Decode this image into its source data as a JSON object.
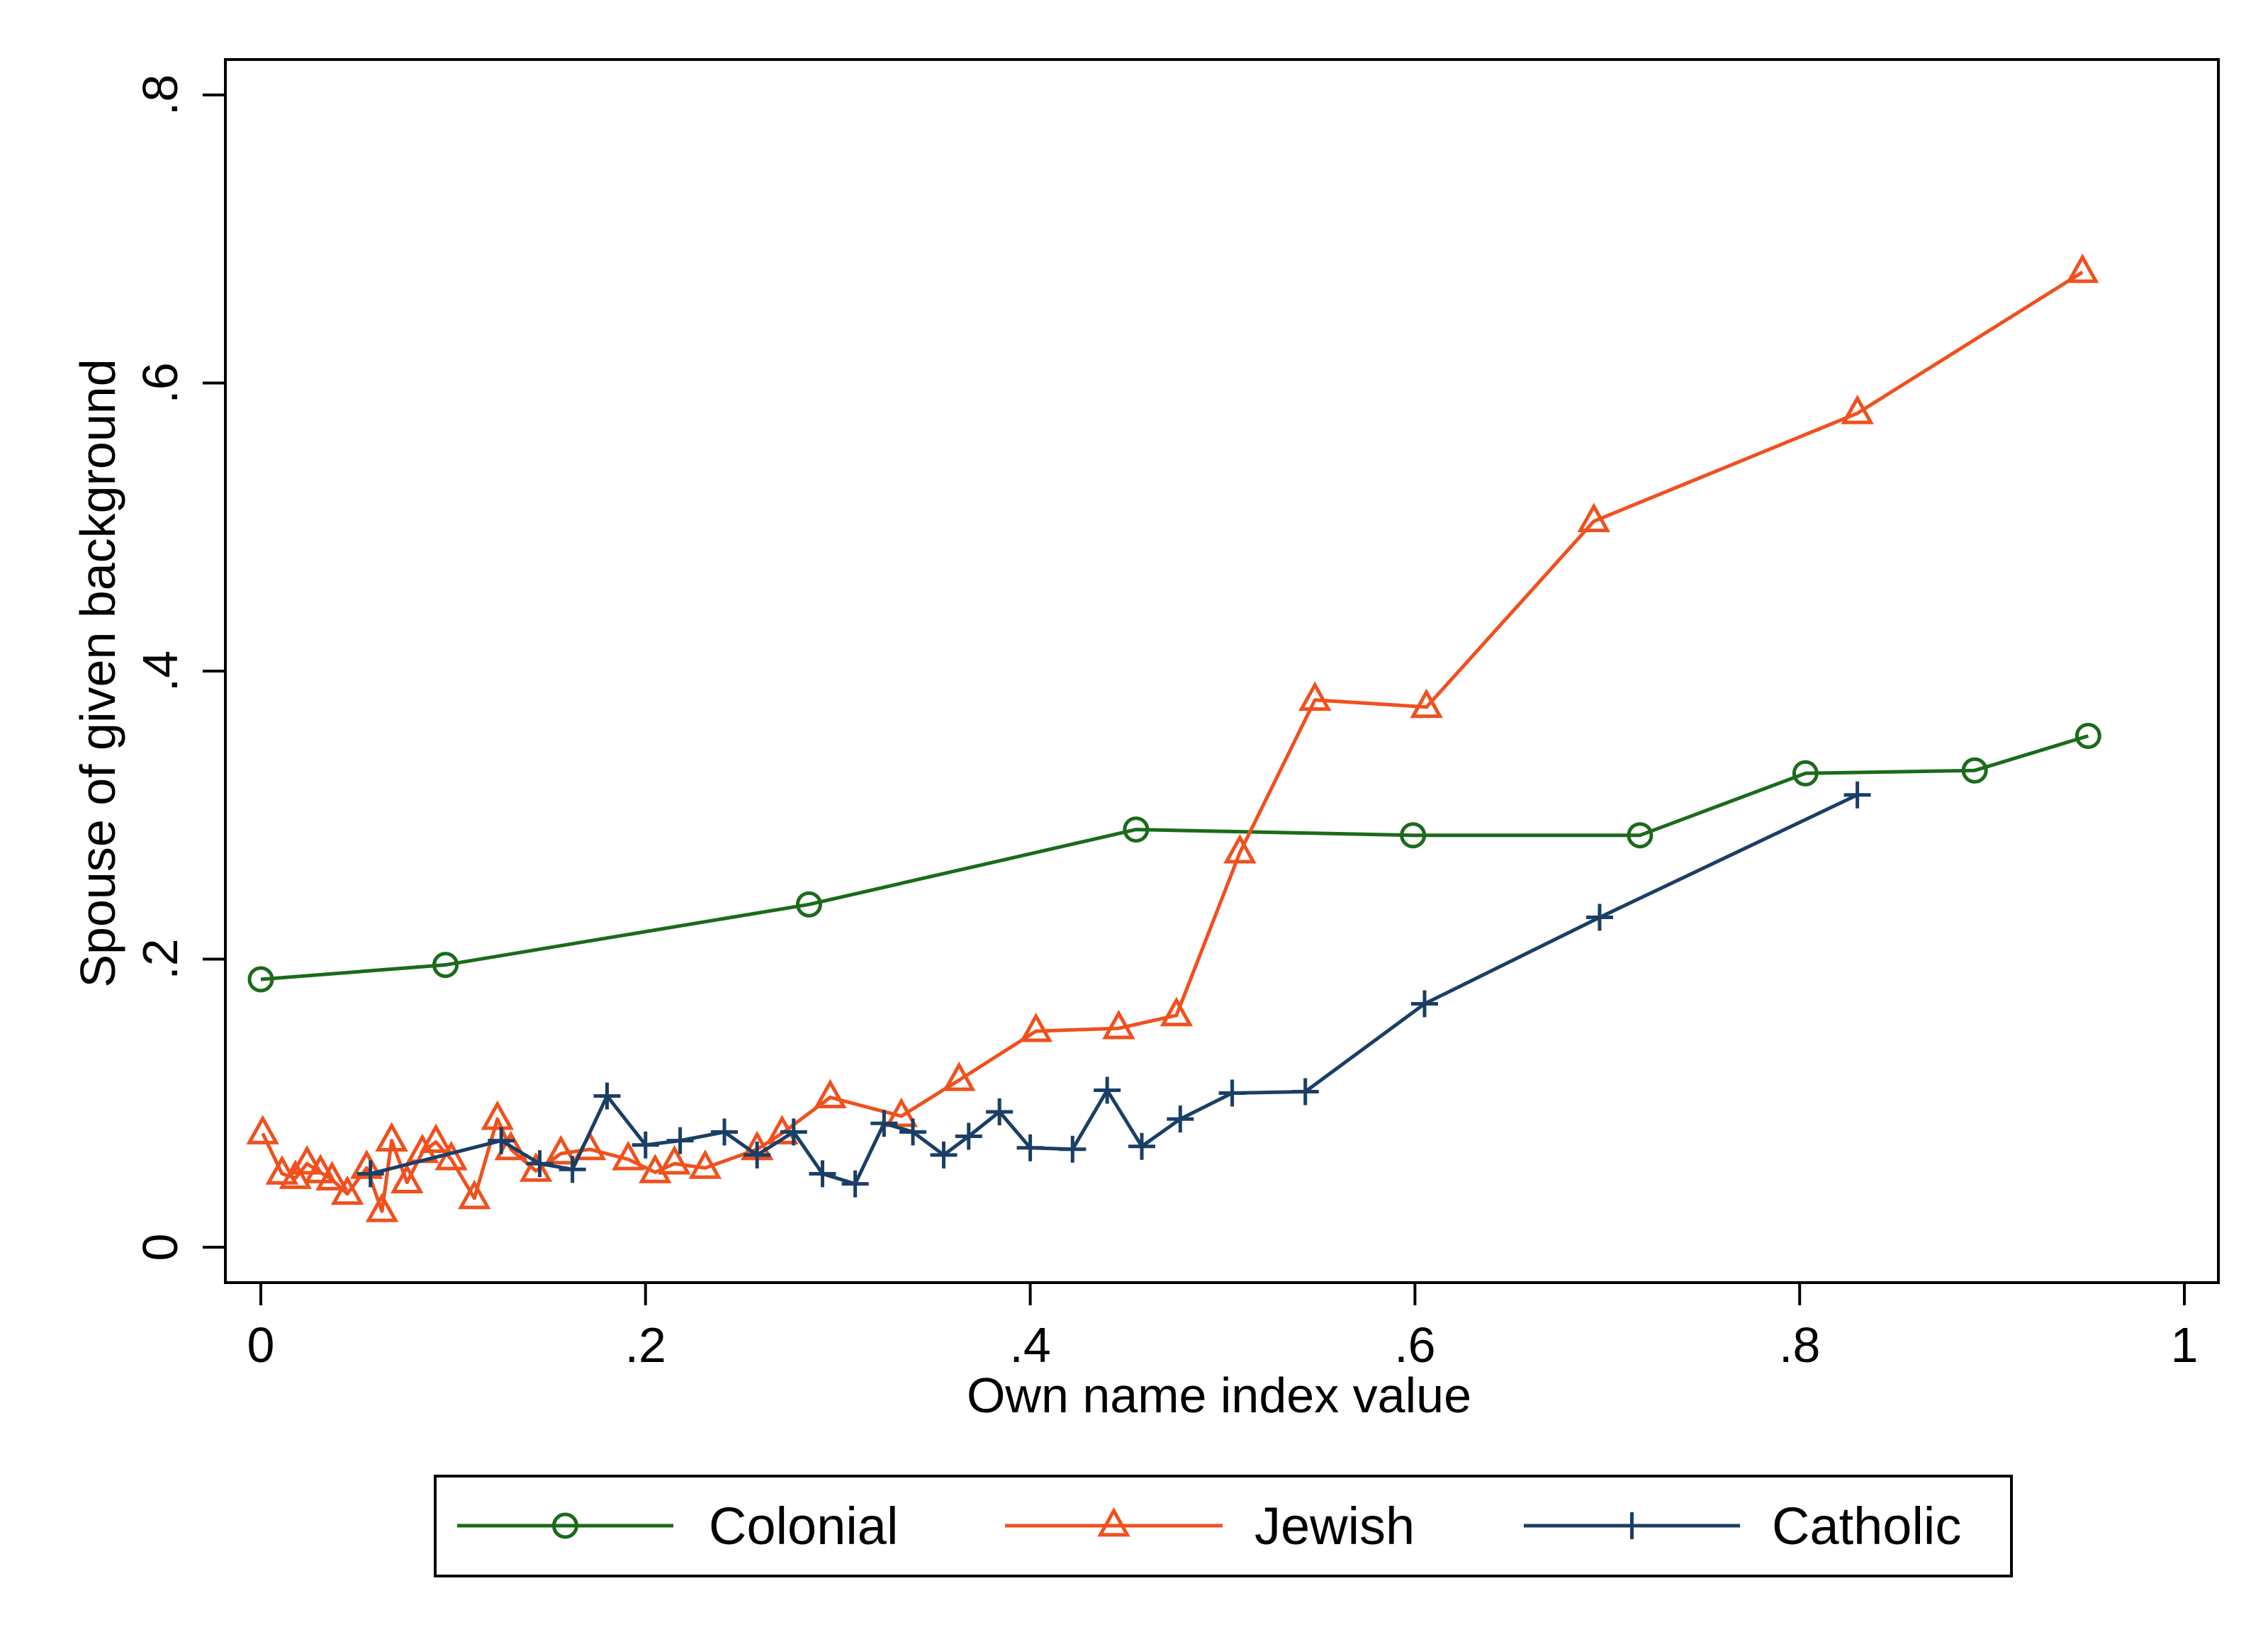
{
  "chart_data": {
    "type": "line",
    "title": "",
    "xlabel": "Own name index value",
    "ylabel": "Spouse of given background",
    "xlim": [
      0,
      1
    ],
    "ylim": [
      0,
      0.8
    ],
    "x_ticks": [
      0,
      0.2,
      0.4,
      0.6,
      0.8,
      1
    ],
    "x_tick_labels": [
      "0",
      ".2",
      ".4",
      ".6",
      ".8",
      "1"
    ],
    "y_ticks": [
      0,
      0.2,
      0.4,
      0.6,
      0.8
    ],
    "y_tick_labels": [
      "0",
      ".2",
      ".4",
      ".6",
      ".8"
    ],
    "grid": false,
    "legend_position": "bottom",
    "series": [
      {
        "name": "Colonial",
        "color": "#1a6b1a",
        "marker": "circle",
        "x": [
          0.0,
          0.096,
          0.285,
          0.455,
          0.599,
          0.717,
          0.803,
          0.891,
          0.95
        ],
        "y": [
          0.186,
          0.196,
          0.238,
          0.29,
          0.286,
          0.286,
          0.329,
          0.331,
          0.355
        ]
      },
      {
        "name": "Jewish",
        "color": "#f0501e",
        "marker": "triangle",
        "x": [
          0.001,
          0.011,
          0.018,
          0.024,
          0.031,
          0.037,
          0.045,
          0.055,
          0.063,
          0.068,
          0.076,
          0.084,
          0.091,
          0.099,
          0.111,
          0.123,
          0.13,
          0.143,
          0.156,
          0.171,
          0.191,
          0.205,
          0.215,
          0.231,
          0.258,
          0.271,
          0.296,
          0.333,
          0.363,
          0.403,
          0.446,
          0.476,
          0.509,
          0.548,
          0.606,
          0.693,
          0.83,
          0.947
        ],
        "y": [
          0.079,
          0.051,
          0.048,
          0.058,
          0.052,
          0.047,
          0.037,
          0.055,
          0.025,
          0.074,
          0.045,
          0.066,
          0.073,
          0.061,
          0.034,
          0.089,
          0.068,
          0.053,
          0.065,
          0.068,
          0.061,
          0.052,
          0.058,
          0.055,
          0.068,
          0.079,
          0.104,
          0.091,
          0.116,
          0.15,
          0.152,
          0.161,
          0.274,
          0.38,
          0.375,
          0.504,
          0.579,
          0.677
        ]
      },
      {
        "name": "Catholic",
        "color": "#1a3f66",
        "marker": "plus",
        "x": [
          0.057,
          0.125,
          0.145,
          0.162,
          0.18,
          0.2,
          0.218,
          0.241,
          0.258,
          0.277,
          0.292,
          0.309,
          0.324,
          0.339,
          0.355,
          0.368,
          0.384,
          0.4,
          0.422,
          0.44,
          0.458,
          0.478,
          0.505,
          0.543,
          0.605,
          0.696,
          0.83
        ],
        "y": [
          0.051,
          0.074,
          0.058,
          0.054,
          0.105,
          0.071,
          0.074,
          0.08,
          0.064,
          0.08,
          0.051,
          0.044,
          0.086,
          0.08,
          0.064,
          0.077,
          0.094,
          0.069,
          0.068,
          0.109,
          0.07,
          0.089,
          0.107,
          0.108,
          0.169,
          0.229,
          0.314
        ]
      }
    ]
  }
}
